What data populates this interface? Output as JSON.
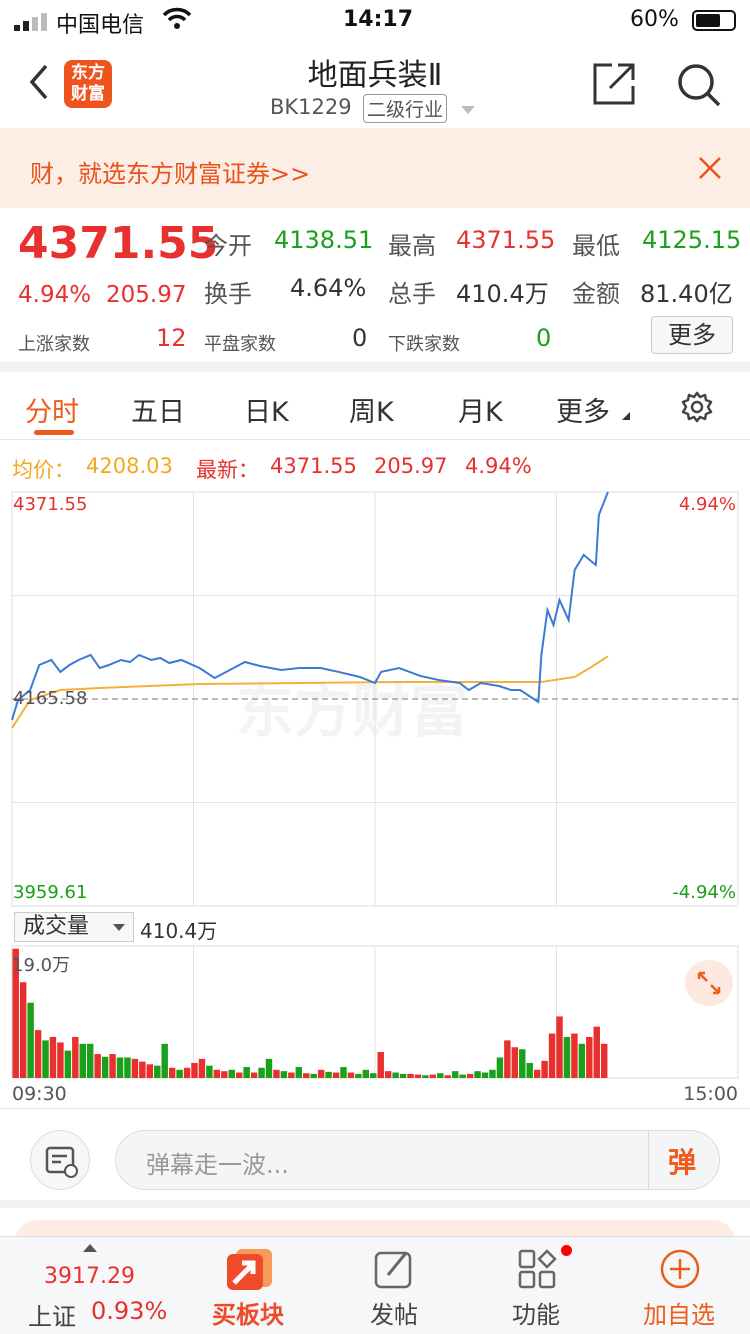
{
  "status_bar": {
    "carrier": "中国电信",
    "time": "14:17",
    "battery": "60%"
  },
  "header": {
    "title": "地面兵装Ⅱ",
    "code": "BK1229",
    "tag": "二级行业",
    "logo_text": "东方财富"
  },
  "banner": {
    "text": "财，就选东方财富证券>>"
  },
  "quote": {
    "price": "4371.55",
    "change_pct": "4.94%",
    "change": "205.97",
    "open_label": "今开",
    "open": "4138.51",
    "high_label": "最高",
    "high": "4371.55",
    "low_label": "最低",
    "low": "4125.15",
    "turnover_label": "换手",
    "turnover": "4.64%",
    "volume_label": "总手",
    "volume": "410.4万",
    "amount_label": "金额",
    "amount": "81.40亿",
    "up_label": "上涨家数",
    "up": "12",
    "flat_label": "平盘家数",
    "flat": "0",
    "down_label": "下跌家数",
    "down": "0",
    "more": "更多"
  },
  "tabs": [
    "分时",
    "五日",
    "日K",
    "周K",
    "月K",
    "更多"
  ],
  "legend": {
    "avg_label": "均价：",
    "avg": "4208.03",
    "last_label": "最新：",
    "last": "4371.55",
    "change": "205.97",
    "pct": "4.94%"
  },
  "colors": {
    "accent": "#f05a1a",
    "up": "#e8312f",
    "down": "#1aa01a",
    "price_line": "#3a7bd5",
    "avg_line": "#f5b03a"
  },
  "chart_data": {
    "type": "line",
    "y_labels": {
      "top": "4371.55",
      "mid": "4165.58",
      "bottom": "3959.61",
      "top_pct": "4.94%",
      "bottom_pct": "-4.94%"
    },
    "ylim": [
      3959.61,
      4371.55
    ],
    "prev_close": 4165.58,
    "x_labels": [
      "09:30",
      "15:00"
    ],
    "watermark": "东方财富",
    "price": [
      [
        "09:30",
        4144.7
      ],
      [
        "09:32",
        4164.6
      ],
      [
        "09:36",
        4174.5
      ],
      [
        "09:39",
        4199.4
      ],
      [
        "09:43",
        4204.4
      ],
      [
        "09:46",
        4192.5
      ],
      [
        "09:49",
        4199.4
      ],
      [
        "09:52",
        4204.4
      ],
      [
        "09:56",
        4209.4
      ],
      [
        "09:59",
        4196.4
      ],
      [
        "10:02",
        4199.4
      ],
      [
        "10:06",
        4204.4
      ],
      [
        "10:09",
        4202.4
      ],
      [
        "10:12",
        4209.4
      ],
      [
        "10:16",
        4204.4
      ],
      [
        "10:19",
        4206.4
      ],
      [
        "10:22",
        4201.4
      ],
      [
        "10:26",
        4204.4
      ],
      [
        "10:32",
        4196.4
      ],
      [
        "10:37",
        4186.5
      ],
      [
        "10:42",
        4194.4
      ],
      [
        "10:47",
        4202.4
      ],
      [
        "10:52",
        4198.4
      ],
      [
        "10:59",
        4194.4
      ],
      [
        "11:05",
        4196.4
      ],
      [
        "11:12",
        4196.4
      ],
      [
        "11:18",
        4192.5
      ],
      [
        "11:25",
        4187.5
      ],
      [
        "11:30",
        4181.5
      ],
      [
        "13:02",
        4192.5
      ],
      [
        "13:08",
        4196.4
      ],
      [
        "13:15",
        4188.5
      ],
      [
        "13:21",
        4184.5
      ],
      [
        "13:28",
        4181.5
      ],
      [
        "13:31",
        4174.5
      ],
      [
        "13:35",
        4181.5
      ],
      [
        "13:41",
        4178.5
      ],
      [
        "13:45",
        4174.5
      ],
      [
        "13:48",
        4174.5
      ],
      [
        "13:54",
        4162.6
      ],
      [
        "13:55",
        4209.4
      ],
      [
        "13:57",
        4254.1
      ],
      [
        "13:59",
        4239.2
      ],
      [
        "14:01",
        4264.1
      ],
      [
        "14:04",
        4244.2
      ],
      [
        "14:06",
        4294.0
      ],
      [
        "14:09",
        4308.9
      ],
      [
        "14:13",
        4298.9
      ],
      [
        "14:14",
        4348.7
      ],
      [
        "14:17",
        4371.55
      ]
    ],
    "avg": [
      [
        "09:30",
        4136.7
      ],
      [
        "09:36",
        4164.6
      ],
      [
        "09:46",
        4174.5
      ],
      [
        "09:59",
        4176.5
      ],
      [
        "10:32",
        4180.5
      ],
      [
        "13:08",
        4182.5
      ],
      [
        "13:55",
        4182.5
      ],
      [
        "14:06",
        4187.5
      ],
      [
        "14:11",
        4196.4
      ],
      [
        "14:17",
        4208.03
      ]
    ]
  },
  "volume_panel": {
    "label": "成交量",
    "total": "410.4万",
    "max_label": "19.0万",
    "max": 19.0,
    "bars": [
      [
        18.9,
        "r"
      ],
      [
        14,
        "r"
      ],
      [
        11,
        "g"
      ],
      [
        7,
        "r"
      ],
      [
        5.5,
        "g"
      ],
      [
        6,
        "r"
      ],
      [
        5.2,
        "r"
      ],
      [
        4,
        "g"
      ],
      [
        6,
        "r"
      ],
      [
        5,
        "g"
      ],
      [
        5,
        "g"
      ],
      [
        3.5,
        "r"
      ],
      [
        3.1,
        "g"
      ],
      [
        3.5,
        "r"
      ],
      [
        3,
        "g"
      ],
      [
        3,
        "g"
      ],
      [
        2.8,
        "r"
      ],
      [
        2.4,
        "r"
      ],
      [
        2,
        "r"
      ],
      [
        1.8,
        "g"
      ],
      [
        5,
        "g"
      ],
      [
        1.5,
        "r"
      ],
      [
        1.2,
        "g"
      ],
      [
        1.5,
        "r"
      ],
      [
        2.2,
        "r"
      ],
      [
        2.8,
        "r"
      ],
      [
        1.8,
        "g"
      ],
      [
        1.2,
        "r"
      ],
      [
        1,
        "r"
      ],
      [
        1.2,
        "g"
      ],
      [
        0.8,
        "r"
      ],
      [
        1.6,
        "g"
      ],
      [
        0.8,
        "r"
      ],
      [
        1.5,
        "g"
      ],
      [
        2.8,
        "g"
      ],
      [
        1.2,
        "r"
      ],
      [
        1,
        "g"
      ],
      [
        0.8,
        "r"
      ],
      [
        1.6,
        "g"
      ],
      [
        0.7,
        "r"
      ],
      [
        0.6,
        "g"
      ],
      [
        1.2,
        "r"
      ],
      [
        0.9,
        "g"
      ],
      [
        0.8,
        "r"
      ],
      [
        1.6,
        "g"
      ],
      [
        0.8,
        "r"
      ],
      [
        0.6,
        "g"
      ],
      [
        1.2,
        "g"
      ],
      [
        0.7,
        "g"
      ],
      [
        3.8,
        "r"
      ],
      [
        1,
        "r"
      ],
      [
        0.8,
        "g"
      ],
      [
        0.6,
        "g"
      ],
      [
        0.6,
        "r"
      ],
      [
        0.5,
        "r"
      ],
      [
        0.4,
        "g"
      ],
      [
        0.5,
        "r"
      ],
      [
        0.7,
        "g"
      ],
      [
        0.4,
        "r"
      ],
      [
        1,
        "g"
      ],
      [
        0.5,
        "g"
      ],
      [
        0.6,
        "r"
      ],
      [
        1,
        "g"
      ],
      [
        0.8,
        "g"
      ],
      [
        1.2,
        "g"
      ],
      [
        3,
        "g"
      ],
      [
        5.5,
        "r"
      ],
      [
        4.5,
        "r"
      ],
      [
        4.2,
        "g"
      ],
      [
        2.2,
        "g"
      ],
      [
        1.2,
        "r"
      ],
      [
        2.5,
        "r"
      ],
      [
        6.5,
        "r"
      ],
      [
        9,
        "r"
      ],
      [
        6,
        "g"
      ],
      [
        6.5,
        "r"
      ],
      [
        5,
        "g"
      ],
      [
        6,
        "r"
      ],
      [
        7.5,
        "r"
      ],
      [
        5,
        "r"
      ]
    ]
  },
  "comment": {
    "placeholder": "弹幕走一波...",
    "send": "弹"
  },
  "bottom_nav": {
    "index_value": "3917.29",
    "index_name": "上证",
    "index_pct": "0.93%",
    "items": [
      "买板块",
      "发帖",
      "功能",
      "加自选"
    ]
  }
}
